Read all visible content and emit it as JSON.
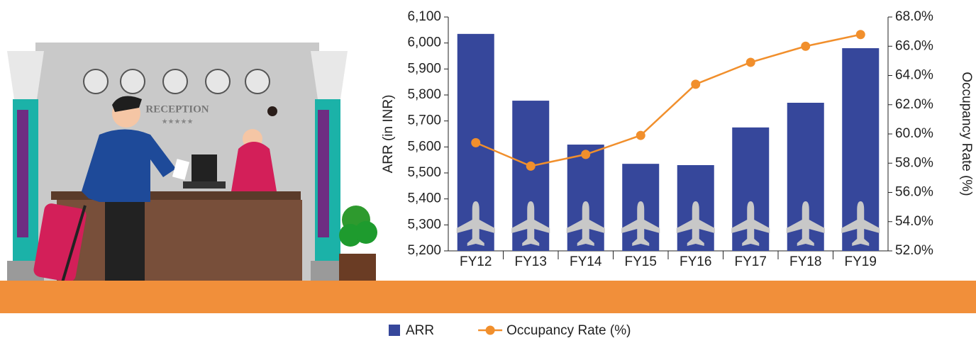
{
  "chart_data": {
    "type": "bar_line",
    "categories": [
      "FY12",
      "FY13",
      "FY14",
      "FY15",
      "FY16",
      "FY17",
      "FY18",
      "FY19"
    ],
    "series": [
      {
        "name": "ARR",
        "type": "bar",
        "color": "#36479b",
        "values": [
          6035,
          5778,
          5609,
          5535,
          5530,
          5675,
          5770,
          5980
        ]
      },
      {
        "name": "Occupancy Rate (%)",
        "type": "line",
        "axis": "y2",
        "color": "#f18f2c",
        "values": [
          59.4,
          57.8,
          58.6,
          59.9,
          63.4,
          64.9,
          66.0,
          66.8
        ]
      }
    ],
    "ylabel": "ARR (in INR)",
    "y2label": "Occupancy Rate (%)",
    "ylim": [
      5200,
      6100
    ],
    "yticks": [
      {
        "value": 5200,
        "label": "5,200"
      },
      {
        "value": 5300,
        "label": "5,300"
      },
      {
        "value": 5400,
        "label": "5,400"
      },
      {
        "value": 5500,
        "label": "5,500"
      },
      {
        "value": 5600,
        "label": "5,600"
      },
      {
        "value": 5700,
        "label": "5,700"
      },
      {
        "value": 5800,
        "label": "5,800"
      },
      {
        "value": 5900,
        "label": "5,900"
      },
      {
        "value": 6000,
        "label": "6,000"
      },
      {
        "value": 6100,
        "label": "6,100"
      }
    ],
    "y2lim": [
      52,
      68
    ],
    "y2ticks": [
      {
        "value": 52,
        "label": "52.0%"
      },
      {
        "value": 54,
        "label": "54.0%"
      },
      {
        "value": 56,
        "label": "56.0%"
      },
      {
        "value": 58,
        "label": "58.0%"
      },
      {
        "value": 60,
        "label": "60.0%"
      },
      {
        "value": 62,
        "label": "62.0%"
      },
      {
        "value": 64,
        "label": "64.0%"
      },
      {
        "value": 66,
        "label": "66.0%"
      },
      {
        "value": 68,
        "label": "68.0%"
      }
    ],
    "legend": "bottom"
  },
  "illustration": {
    "sign": "RECEPTION",
    "stars": "★★★★★"
  }
}
